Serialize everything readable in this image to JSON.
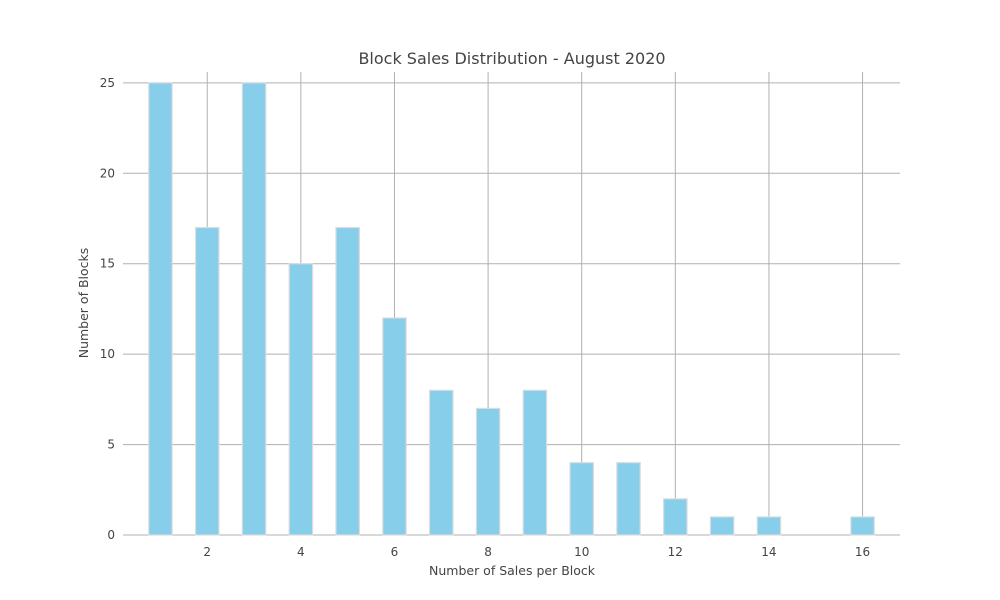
{
  "chart_data": {
    "type": "bar",
    "title": "Block Sales Distribution - August 2020",
    "xlabel": "Number of Sales per Block",
    "ylabel": "Number of Blocks",
    "x": [
      1,
      2,
      3,
      4,
      5,
      6,
      7,
      8,
      9,
      10,
      11,
      12,
      13,
      14,
      15,
      16
    ],
    "values": [
      25,
      17,
      25,
      15,
      17,
      12,
      8,
      7,
      8,
      4,
      4,
      2,
      1,
      1,
      0,
      1
    ],
    "xlim": [
      0.2,
      16.8
    ],
    "ylim": [
      0,
      25.6
    ],
    "xticks": [
      2,
      4,
      6,
      8,
      10,
      12,
      14,
      16
    ],
    "yticks": [
      0,
      5,
      10,
      15,
      20,
      25
    ],
    "grid": true,
    "legend": "none",
    "bar_color": "#87ceeb",
    "bar_edge_color": "#dcdcdc",
    "grid_color": "#b0b0b0"
  }
}
